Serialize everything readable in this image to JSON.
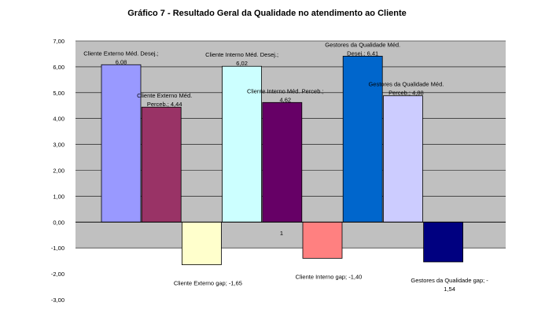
{
  "chart_data": {
    "type": "bar",
    "title": "Gráfico 7 - Resultado Geral da Qualidade no atendimento ao Cliente",
    "xlabel": "",
    "ylabel": "",
    "ylim": [
      -3.0,
      7.0
    ],
    "ytick_step": 1.0,
    "ytick_labels": [
      "7,00",
      "6,00",
      "5,00",
      "4,00",
      "3,00",
      "2,00",
      "1,00",
      "0,00",
      "-1,00",
      "-2,00",
      "-3,00"
    ],
    "grid": true,
    "plot_background": "#c0c0c0",
    "category_labels": [
      "1"
    ],
    "bars": [
      {
        "value": 6.08,
        "color": "#9999ff",
        "label_lines": [
          "Cliente Externo Méd. Desej.;",
          "6,08"
        ]
      },
      {
        "value": 4.44,
        "color": "#993366",
        "label_lines": [
          "Cliente Externo Méd.",
          "Perceb.; 4,44"
        ]
      },
      {
        "value": -1.65,
        "color": "#ffffcc",
        "label_lines": [
          "Cliente Externo gap; -1,65"
        ]
      },
      {
        "value": 6.02,
        "color": "#ccffff",
        "label_lines": [
          "Cliente Interno Méd. Desej.;",
          "6,02"
        ]
      },
      {
        "value": 4.62,
        "color": "#660066",
        "label_lines": [
          "Cliente Interno Méd. Perceb.;",
          "4,62"
        ]
      },
      {
        "value": -1.4,
        "color": "#ff8080",
        "label_lines": [
          "Cliente Interno gap; -1,40"
        ]
      },
      {
        "value": 6.41,
        "color": "#0066cc",
        "label_lines": [
          "Gestores da Qualidade Méd.",
          "Desej.; 6,41"
        ]
      },
      {
        "value": 4.88,
        "color": "#ccccff",
        "label_lines": [
          "Gestores da Qualidade Méd.",
          "Perceb.; 4,88"
        ]
      },
      {
        "value": -1.54,
        "color": "#000080",
        "label_lines": [
          "Gestores da Qualidade gap; -",
          "1,54"
        ]
      }
    ]
  }
}
